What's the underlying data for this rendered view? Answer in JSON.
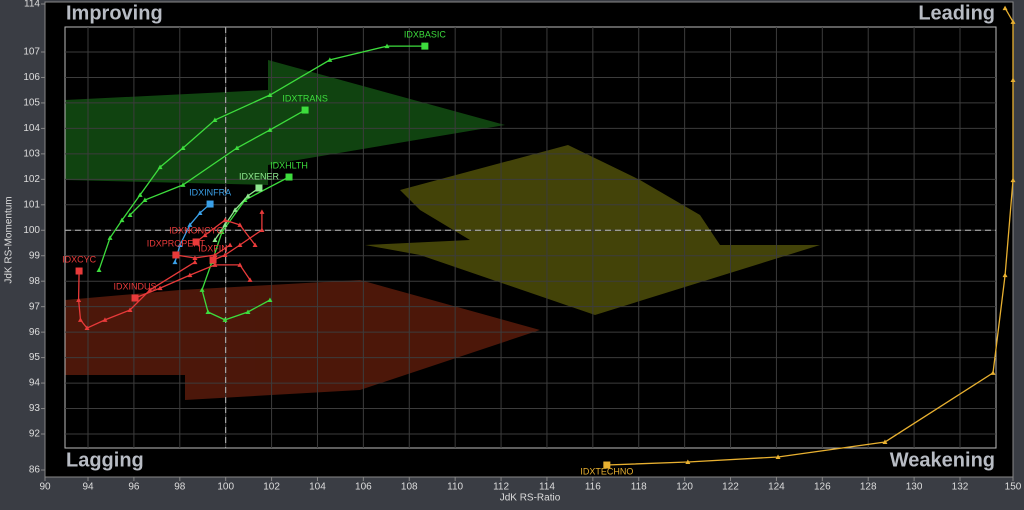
{
  "chart_data": {
    "type": "rrg",
    "x_label": "JdK RS-Ratio",
    "y_label": "JdK RS-Momentum",
    "quadrants": [
      "Improving",
      "Leading",
      "Lagging",
      "Weakening"
    ],
    "xlim": [
      90,
      150
    ],
    "ylim": [
      86,
      114
    ],
    "xticks": [
      90,
      94,
      96,
      98,
      100,
      102,
      104,
      106,
      108,
      110,
      112,
      114,
      116,
      118,
      120,
      122,
      124,
      126,
      128,
      130,
      132,
      150
    ],
    "yticks": [
      86,
      92,
      93,
      94,
      95,
      96,
      97,
      98,
      99,
      100,
      101,
      102,
      103,
      104,
      105,
      106,
      107,
      114
    ],
    "reference_x": 100,
    "reference_y": 100,
    "grid": true,
    "series": [
      {
        "name": "IDXBASIC",
        "color": "#3ddc3d",
        "x": [
          94.48,
          94.96,
          95.48,
          96.27,
          97.14,
          98.14,
          99.53,
          101.93,
          104.54,
          107.03,
          108.68
        ],
        "values": [
          98.44,
          99.7,
          100.4,
          101.39,
          102.48,
          103.23,
          104.33,
          105.31,
          106.69,
          107.86,
          107.86
        ]
      },
      {
        "name": "IDXTRANS",
        "color": "#3ddc3d",
        "x": [
          95.83,
          96.48,
          98.14,
          100.49,
          101.93,
          103.46
        ],
        "values": [
          100.6,
          101.19,
          101.78,
          103.23,
          103.94,
          104.72
        ]
      },
      {
        "name": "IDXHLTH",
        "color": "#3ddc3d",
        "x": [
          101.93,
          100.97,
          99.97,
          99.23,
          98.97,
          99.4,
          99.84,
          100.84,
          102.76
        ],
        "values": [
          97.26,
          96.79,
          96.48,
          96.79,
          97.66,
          98.75,
          99.93,
          101.19,
          102.09
        ]
      },
      {
        "name": "IDXENER",
        "color": "#8fe88f",
        "x": [
          99.53,
          99.97,
          100.41,
          100.97,
          101.45
        ],
        "values": [
          99.62,
          100.21,
          100.8,
          101.35,
          101.66
        ]
      },
      {
        "name": "IDXINFRA",
        "color": "#3aa0e8",
        "x": [
          97.79,
          98.01,
          98.44,
          98.88,
          99.32
        ],
        "values": [
          98.75,
          99.42,
          100.21,
          100.68,
          101.03
        ]
      },
      {
        "name": "IDXCYC",
        "color": "#e83a3a",
        "x": [
          98.66,
          96.7,
          95.83,
          94.74,
          93.91,
          93.3,
          93.13,
          93.17
        ],
        "values": [
          98.75,
          97.66,
          96.87,
          96.48,
          96.16,
          96.48,
          97.26,
          98.4
        ]
      },
      {
        "name": "IDXINDUS",
        "color": "#e83a3a",
        "x": [
          101.06,
          100.62,
          99.53,
          98.44,
          97.14,
          96.05
        ],
        "values": [
          98.05,
          98.64,
          98.64,
          98.24,
          97.73,
          97.34
        ]
      },
      {
        "name": "IDXNONCYC",
        "color": "#e83a3a",
        "x": [
          101.28,
          100.62,
          99.97,
          99.1,
          98.71
        ],
        "values": [
          99.42,
          100.21,
          100.4,
          99.81,
          99.54
        ]
      },
      {
        "name": "IDXPROPERT",
        "color": "#e83a3a",
        "x": [
          100.19,
          99.53,
          98.66,
          97.83
        ],
        "values": [
          99.42,
          99.03,
          98.91,
          99.03
        ]
      },
      {
        "name": "IDXFIN",
        "color": "#e83a3a",
        "x": [
          101.58,
          101.58,
          100.62,
          99.97,
          99.45
        ],
        "values": [
          100.72,
          100.01,
          99.42,
          99.03,
          98.83
        ]
      },
      {
        "name": "IDXTECHNO",
        "color": "#e8b030",
        "x": [
          147.3,
          150,
          150,
          150,
          147.3,
          143.2,
          128.73,
          124.07,
          120.14,
          116.61
        ],
        "values": [
          113.4,
          111.4,
          105.9,
          101.97,
          98.24,
          94.4,
          90.67,
          88.17,
          87.33,
          86.83
        ]
      }
    ]
  }
}
